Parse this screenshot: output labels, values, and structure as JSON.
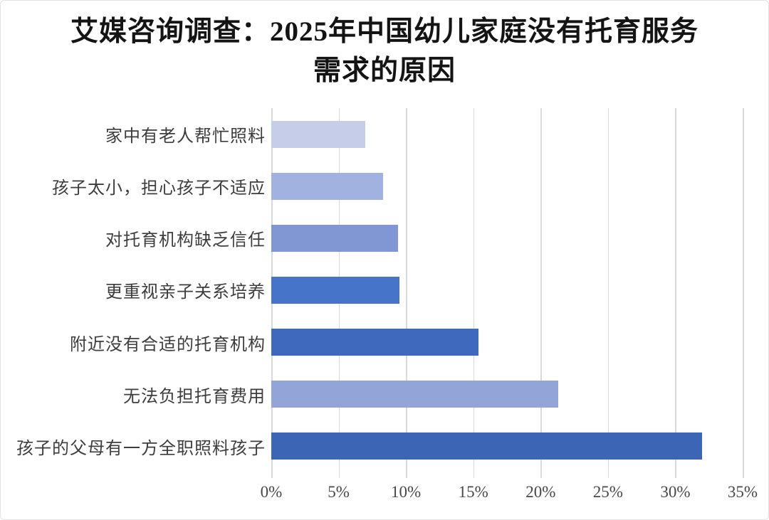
{
  "chart_data": {
    "type": "bar",
    "orientation": "horizontal",
    "title": "艾媒咨询调查：2025年中国幼儿家庭没有托育服务需求的原因",
    "title_lines": [
      "艾媒咨询调查：2025年中国幼儿家庭没有托育服务",
      "需求的原因"
    ],
    "categories": [
      "家中有老人帮忙照料",
      "孩子太小，担心孩子不适应",
      "对托育机构缺乏信任",
      "更重视亲子关系培养",
      "附近没有合适的托育机构",
      "无法负担托育费用",
      "孩子的父母有一方全职照料孩子"
    ],
    "values": [
      7.0,
      8.3,
      9.4,
      9.5,
      15.4,
      21.3,
      32.0
    ],
    "unit": "%",
    "bar_colors": [
      "#c6cde8",
      "#a2b2e0",
      "#8097d3",
      "#4674c9",
      "#3f69bd",
      "#93a4d9",
      "#3d65b5"
    ],
    "xlabel": "",
    "ylabel": "",
    "xlim": [
      0,
      35
    ],
    "x_ticks": [
      0,
      5,
      10,
      15,
      20,
      25,
      30,
      35
    ],
    "x_tick_labels": [
      "0%",
      "5%",
      "10%",
      "15%",
      "20%",
      "25%",
      "30%",
      "35%"
    ],
    "grid": "vertical",
    "legend": "none",
    "colors": {
      "gridline": "#d9d9d9",
      "background": "#ffffff",
      "title_text": "#141414",
      "category_text": "#3d3d3d",
      "axis_text": "#474747"
    }
  }
}
